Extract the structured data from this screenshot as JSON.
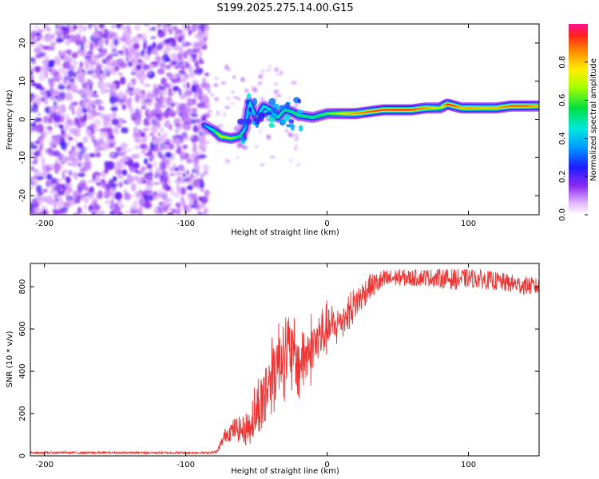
{
  "figure_title": "S199.2025.275.14.00.G15",
  "chart_data": [
    {
      "type": "heatmap",
      "title": "S199.2025.275.14.00.G15",
      "xlabel": "Height of straight line (km)",
      "ylabel": "Frequency (Hz)",
      "xlim": [
        -210,
        150
      ],
      "ylim": [
        -25,
        25
      ],
      "xticks": [
        -200,
        -100,
        0,
        100
      ],
      "xtick_labels": [
        "-200",
        "-100",
        "0",
        "100"
      ],
      "yticks": [
        20,
        10,
        0,
        -10,
        -20
      ],
      "ytick_labels": [
        "20",
        "10",
        "0",
        "-10",
        "-20"
      ],
      "noise_region_km": [
        -210,
        -85
      ],
      "ridge": {
        "description": "dominant frequency ridge",
        "x": [
          -87,
          -80,
          -75,
          -68,
          -62,
          -58,
          -55,
          -50,
          -45,
          -40,
          -35,
          -30,
          -25,
          -20,
          -10,
          0,
          10,
          20,
          30,
          40,
          50,
          60,
          70,
          80,
          85,
          90,
          95,
          100,
          110,
          120,
          130,
          140,
          150
        ],
        "y": [
          -1.5,
          -3,
          -4.5,
          -5,
          -4.5,
          -2.5,
          4.5,
          0,
          3.5,
          2.5,
          0.5,
          2.5,
          2,
          1,
          0.5,
          1.5,
          1.5,
          1.5,
          2,
          2.5,
          2.5,
          2.5,
          3,
          3,
          4,
          3.5,
          3,
          3,
          3,
          3,
          3.5,
          3.5,
          3.5
        ],
        "amplitude": [
          0.35,
          0.55,
          0.75,
          0.65,
          0.55,
          0.4,
          0.45,
          0.5,
          0.45,
          0.5,
          0.5,
          0.5,
          0.55,
          0.55,
          0.55,
          0.6,
          0.75,
          0.85,
          0.9,
          0.92,
          0.95,
          0.93,
          0.85,
          0.7,
          0.95,
          0.92,
          0.8,
          0.85,
          0.8,
          0.82,
          0.9,
          0.9,
          0.8
        ]
      },
      "colorbar": {
        "label": "Normalized spectral amplitude",
        "range": [
          0,
          1
        ],
        "ticks": [
          0.0,
          0.2,
          0.4,
          0.6,
          0.8
        ],
        "tick_labels": [
          "0.0",
          "0.2",
          "0.4",
          "0.6",
          "0.8"
        ]
      }
    },
    {
      "type": "line",
      "xlabel": "Height of straight line (km)",
      "ylabel": "SNR (10 * v/v)",
      "xlim": [
        -210,
        150
      ],
      "ylim": [
        0,
        910
      ],
      "xticks": [
        -200,
        -100,
        0,
        100
      ],
      "xtick_labels": [
        "-200",
        "-100",
        "0",
        "100"
      ],
      "yticks": [
        0,
        200,
        400,
        600,
        800
      ],
      "ytick_labels": [
        "0",
        "200",
        "400",
        "600",
        "800"
      ],
      "series": [
        {
          "name": "SNR",
          "color": "#ee3333",
          "x": [
            -210,
            -180,
            -150,
            -120,
            -100,
            -85,
            -78,
            -72,
            -65,
            -58,
            -52,
            -46,
            -40,
            -35,
            -30,
            -25,
            -20,
            -15,
            -10,
            -5,
            0,
            5,
            10,
            15,
            20,
            25,
            30,
            40,
            50,
            60,
            70,
            80,
            90,
            100,
            110,
            120,
            130,
            140,
            150
          ],
          "values": [
            15,
            15,
            15,
            15,
            15,
            15,
            18,
            100,
            130,
            120,
            180,
            260,
            380,
            450,
            500,
            470,
            430,
            480,
            520,
            560,
            600,
            610,
            640,
            680,
            720,
            760,
            800,
            830,
            845,
            840,
            845,
            840,
            835,
            840,
            835,
            825,
            815,
            805,
            800
          ],
          "jitter": [
            5,
            5,
            5,
            5,
            5,
            5,
            8,
            35,
            55,
            70,
            160,
            220,
            250,
            260,
            260,
            250,
            220,
            210,
            200,
            180,
            150,
            130,
            110,
            100,
            80,
            70,
            60,
            50,
            40,
            40,
            40,
            45,
            50,
            45,
            45,
            45,
            45,
            45,
            40
          ]
        }
      ]
    }
  ]
}
